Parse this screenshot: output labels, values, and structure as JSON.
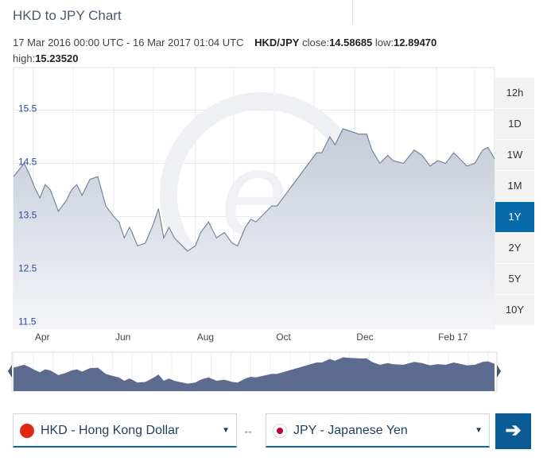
{
  "title": "HKD to JPY Chart",
  "range_text": "17 Mar 2016 00:00 UTC - 16 Mar 2017 01:04 UTC",
  "pair": "HKD/JPY",
  "stats": {
    "close_label": "close:",
    "close": "14.58685",
    "low_label": "low:",
    "low": "12.89470",
    "high_label": "high:",
    "high": "15.23520"
  },
  "periods": [
    {
      "label": "12h",
      "active": false
    },
    {
      "label": "1D",
      "active": false
    },
    {
      "label": "1W",
      "active": false
    },
    {
      "label": "1M",
      "active": false
    },
    {
      "label": "1Y",
      "active": true
    },
    {
      "label": "2Y",
      "active": false
    },
    {
      "label": "5Y",
      "active": false
    },
    {
      "label": "10Y",
      "active": false
    }
  ],
  "from_currency": {
    "label": "HKD - Hong Kong Dollar",
    "flag_color": "#de2910",
    "flag": "hong-kong-flag-icon"
  },
  "to_currency": {
    "label": "JPY - Japanese Yen",
    "flag_color": "#bc002d",
    "flag": "japan-flag-icon"
  },
  "swap_symbol": "↔",
  "go_symbol": "➔",
  "colors": {
    "accent": "#0a6bab",
    "ylabel": "#2b4a9b",
    "navigator": "#5c6b8f"
  },
  "chart_data": {
    "type": "area",
    "ylim": [
      11.4,
      16.3
    ],
    "yticks": [
      11.5,
      12.5,
      13.5,
      14.5,
      15.5
    ],
    "ytick_labels": [
      "11.5",
      "12.5",
      "13.5",
      "14.5",
      "15.5"
    ],
    "xlim": [
      0,
      365
    ],
    "xticks": [
      {
        "label": "Apr",
        "day": 15
      },
      {
        "label": "Jun",
        "day": 76
      },
      {
        "label": "Aug",
        "day": 138
      },
      {
        "label": "Oct",
        "day": 198
      },
      {
        "label": "Dec",
        "day": 259
      },
      {
        "label": "Feb 17",
        "day": 321
      }
    ],
    "grid": true,
    "x": [
      0,
      8,
      12,
      16,
      20,
      24,
      28,
      34,
      40,
      44,
      48,
      52,
      58,
      64,
      70,
      76,
      80,
      84,
      88,
      90,
      94,
      100,
      106,
      110,
      114,
      118,
      122,
      126,
      132,
      138,
      142,
      148,
      154,
      160,
      166,
      170,
      176,
      180,
      184,
      190,
      196,
      200,
      206,
      212,
      218,
      224,
      230,
      234,
      236,
      240,
      244,
      250,
      256,
      262,
      268,
      272,
      278,
      284,
      288,
      296,
      304,
      310,
      316,
      322,
      328,
      334,
      338,
      344,
      350,
      356,
      360,
      365
    ],
    "y": [
      14.25,
      14.5,
      14.3,
      14.05,
      13.85,
      14.1,
      14.0,
      13.6,
      13.8,
      14.0,
      14.1,
      13.9,
      14.2,
      14.25,
      13.7,
      13.5,
      13.4,
      13.1,
      13.3,
      13.2,
      12.95,
      13.0,
      13.35,
      13.65,
      13.1,
      13.3,
      13.1,
      13.0,
      12.85,
      12.95,
      13.2,
      13.4,
      13.1,
      13.2,
      13.0,
      12.95,
      13.3,
      13.45,
      13.4,
      13.55,
      13.7,
      13.7,
      13.9,
      14.1,
      14.3,
      14.5,
      14.7,
      14.7,
      14.8,
      15.0,
      14.85,
      15.15,
      15.1,
      15.05,
      15.05,
      14.75,
      14.5,
      14.65,
      14.55,
      14.5,
      14.75,
      14.65,
      14.45,
      14.55,
      14.5,
      14.7,
      14.6,
      14.45,
      14.5,
      14.75,
      14.8,
      14.58685
    ]
  }
}
